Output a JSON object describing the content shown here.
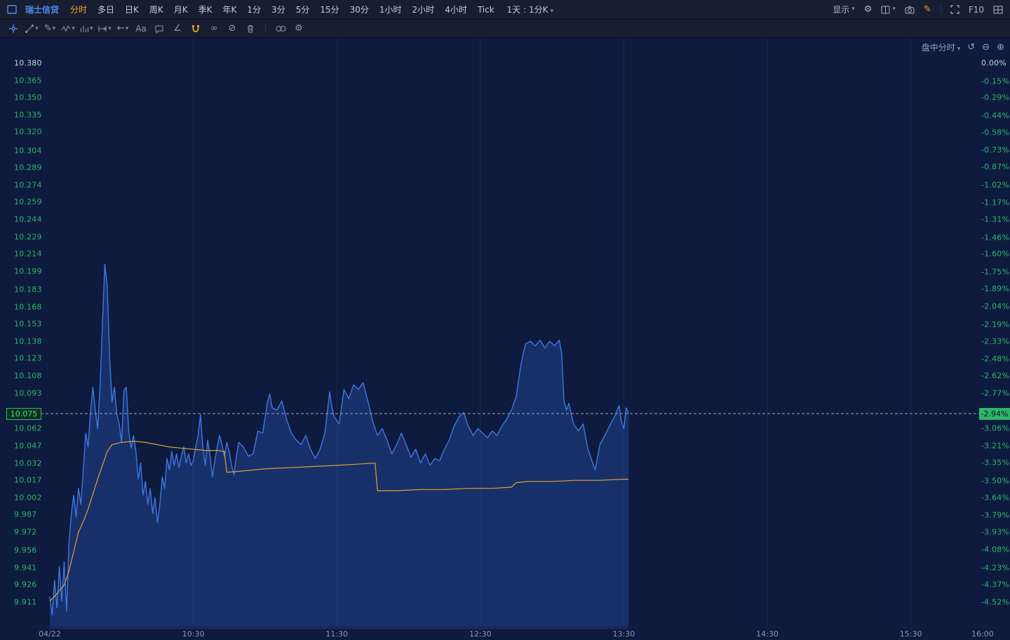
{
  "topbar": {
    "symbol": "瑞士信贷",
    "tabs": [
      "分时",
      "多日",
      "日K",
      "周K",
      "月K",
      "季K",
      "年K",
      "1分",
      "3分",
      "5分",
      "15分",
      "30分",
      "1小时",
      "2小时",
      "4小时",
      "Tick"
    ],
    "active_tab": "分时",
    "period_selector": "1天 : 1分K",
    "display_label": "显示",
    "f10_label": "F10",
    "right_icons": [
      "settings-gear-icon",
      "panel-layout-icon",
      "screenshot-camera-icon",
      "drawing-pencil-icon",
      "fullscreen-icon",
      "multi-window-icon"
    ]
  },
  "drawing_toolbar": {
    "text_tool_label": "Aa",
    "tools": [
      "cursor-crosshair",
      "trendline-tool",
      "pencil-tool",
      "wave-tool",
      "pattern-tool",
      "measure-tool",
      "arrow-tool",
      "text-tool",
      "comment-tool",
      "angle-tool",
      "magnet-tool",
      "continuous-draw-tool",
      "hide-drawings-tool",
      "delete-drawings-tool",
      "sync-drawings-tool",
      "drawing-settings-tool"
    ]
  },
  "chart": {
    "overlay_label": "盘中分时",
    "current_price": "10.075",
    "current_percent": "-2.94%",
    "price_axis": [
      "10.380",
      "10.365",
      "10.350",
      "10.335",
      "10.320",
      "10.304",
      "10.289",
      "10.274",
      "10.259",
      "10.244",
      "10.229",
      "10.214",
      "10.199",
      "10.183",
      "10.168",
      "10.153",
      "10.138",
      "10.123",
      "10.108",
      "10.093",
      "10.062",
      "10.047",
      "10.032",
      "10.017",
      "10.002",
      "9.987",
      "9.972",
      "9.956",
      "9.941",
      "9.926",
      "9.911"
    ],
    "percent_axis": [
      "0.00%",
      "-0.15%",
      "-0.29%",
      "-0.44%",
      "-0.58%",
      "-0.73%",
      "-0.87%",
      "-1.02%",
      "-1.17%",
      "-1.31%",
      "-1.46%",
      "-1.60%",
      "-1.75%",
      "-1.89%",
      "-2.04%",
      "-2.19%",
      "-2.33%",
      "-2.48%",
      "-2.62%",
      "-2.77%",
      "-3.06%",
      "-3.21%",
      "-3.35%",
      "-3.50%",
      "-3.64%",
      "-3.79%",
      "-3.93%",
      "-4.08%",
      "-4.23%",
      "-4.37%",
      "-4.52%"
    ],
    "colors": {
      "down_green": "#2fb56a",
      "accent_orange": "#f5a623",
      "line_blue": "#3e77e0",
      "avg_orange": "#e0a030",
      "background": "#0e1b3e",
      "grid": "#1b2950"
    }
  },
  "chart_data": {
    "type": "line",
    "title": "瑞士信贷 盘中分时 (1分钟)",
    "prev_close": 10.38,
    "current_price": 10.075,
    "current_change_percent": -2.94,
    "x_unit": "minutes since 09:30 open",
    "x_range": [
      0,
      390
    ],
    "y_range": [
      9.911,
      10.38
    ],
    "legend_position": "none",
    "grid": "vertical-hour-lines",
    "time_ticks": [
      {
        "label": "04/22",
        "t": 0
      },
      {
        "label": "10:30",
        "t": 60
      },
      {
        "label": "11:30",
        "t": 120
      },
      {
        "label": "12:30",
        "t": 180
      },
      {
        "label": "13:30",
        "t": 240
      },
      {
        "label": "14:30",
        "t": 300
      },
      {
        "label": "15:30",
        "t": 360
      },
      {
        "label": "16:00",
        "t": 390
      }
    ],
    "series": [
      {
        "name": "price",
        "color": "#3e77e0",
        "fill": "rgba(38,76,158,0.45)",
        "points": [
          [
            0,
            9.916
          ],
          [
            1,
            9.9
          ],
          [
            2,
            9.93
          ],
          [
            3,
            9.906
          ],
          [
            4,
            9.942
          ],
          [
            5,
            9.912
          ],
          [
            6,
            9.946
          ],
          [
            7,
            9.903
          ],
          [
            8,
            9.962
          ],
          [
            9,
            9.988
          ],
          [
            10,
            10.004
          ],
          [
            11,
            9.985
          ],
          [
            12,
            10.01
          ],
          [
            13,
            9.996
          ],
          [
            14,
            10.026
          ],
          [
            15,
            10.058
          ],
          [
            16,
            10.046
          ],
          [
            17,
            10.076
          ],
          [
            18,
            10.098
          ],
          [
            19,
            10.078
          ],
          [
            20,
            10.062
          ],
          [
            21,
            10.098
          ],
          [
            22,
            10.152
          ],
          [
            23,
            10.205
          ],
          [
            24,
            10.186
          ],
          [
            25,
            10.124
          ],
          [
            26,
            10.085
          ],
          [
            27,
            10.098
          ],
          [
            28,
            10.075
          ],
          [
            29,
            10.066
          ],
          [
            30,
            10.05
          ],
          [
            31,
            10.095
          ],
          [
            32,
            10.098
          ],
          [
            33,
            10.06
          ],
          [
            34,
            10.045
          ],
          [
            35,
            10.056
          ],
          [
            36,
            10.042
          ],
          [
            37,
            10.018
          ],
          [
            38,
            10.032
          ],
          [
            39,
            10.004
          ],
          [
            40,
            10.016
          ],
          [
            41,
            9.996
          ],
          [
            42,
            10.01
          ],
          [
            43,
            9.988
          ],
          [
            44,
            10.002
          ],
          [
            45,
            9.98
          ],
          [
            46,
            9.996
          ],
          [
            47,
            10.02
          ],
          [
            48,
            10.01
          ],
          [
            49,
            10.036
          ],
          [
            50,
            10.026
          ],
          [
            51,
            10.042
          ],
          [
            52,
            10.03
          ],
          [
            53,
            10.04
          ],
          [
            54,
            10.028
          ],
          [
            55,
            10.038
          ],
          [
            56,
            10.046
          ],
          [
            57,
            10.032
          ],
          [
            58,
            10.04
          ],
          [
            59,
            10.03
          ],
          [
            60,
            10.034
          ],
          [
            61,
            10.046
          ],
          [
            62,
            10.056
          ],
          [
            63,
            10.074
          ],
          [
            64,
            10.046
          ],
          [
            65,
            10.03
          ],
          [
            66,
            10.052
          ],
          [
            67,
            10.038
          ],
          [
            68,
            10.02
          ],
          [
            69,
            10.034
          ],
          [
            70,
            10.046
          ],
          [
            71,
            10.056
          ],
          [
            72,
            10.048
          ],
          [
            73,
            10.038
          ],
          [
            74,
            10.05
          ],
          [
            75,
            10.042
          ],
          [
            76,
            10.03
          ],
          [
            77,
            10.022
          ],
          [
            78,
            10.038
          ],
          [
            79,
            10.05
          ],
          [
            81,
            10.046
          ],
          [
            83,
            10.038
          ],
          [
            85,
            10.04
          ],
          [
            87,
            10.06
          ],
          [
            89,
            10.058
          ],
          [
            91,
            10.085
          ],
          [
            92,
            10.092
          ],
          [
            93,
            10.08
          ],
          [
            95,
            10.078
          ],
          [
            97,
            10.086
          ],
          [
            99,
            10.07
          ],
          [
            101,
            10.058
          ],
          [
            103,
            10.052
          ],
          [
            105,
            10.048
          ],
          [
            107,
            10.056
          ],
          [
            109,
            10.044
          ],
          [
            111,
            10.036
          ],
          [
            113,
            10.044
          ],
          [
            115,
            10.058
          ],
          [
            117,
            10.094
          ],
          [
            118,
            10.08
          ],
          [
            119,
            10.072
          ],
          [
            121,
            10.066
          ],
          [
            123,
            10.096
          ],
          [
            125,
            10.088
          ],
          [
            127,
            10.1
          ],
          [
            129,
            10.096
          ],
          [
            131,
            10.102
          ],
          [
            133,
            10.086
          ],
          [
            135,
            10.068
          ],
          [
            137,
            10.056
          ],
          [
            139,
            10.062
          ],
          [
            141,
            10.052
          ],
          [
            143,
            10.04
          ],
          [
            145,
            10.048
          ],
          [
            147,
            10.058
          ],
          [
            149,
            10.048
          ],
          [
            151,
            10.037
          ],
          [
            153,
            10.044
          ],
          [
            155,
            10.032
          ],
          [
            157,
            10.04
          ],
          [
            159,
            10.03
          ],
          [
            161,
            10.036
          ],
          [
            163,
            10.034
          ],
          [
            165,
            10.044
          ],
          [
            167,
            10.052
          ],
          [
            169,
            10.064
          ],
          [
            171,
            10.072
          ],
          [
            173,
            10.076
          ],
          [
            175,
            10.064
          ],
          [
            177,
            10.056
          ],
          [
            179,
            10.062
          ],
          [
            181,
            10.058
          ],
          [
            183,
            10.054
          ],
          [
            185,
            10.06
          ],
          [
            187,
            10.056
          ],
          [
            189,
            10.064
          ],
          [
            191,
            10.07
          ],
          [
            193,
            10.078
          ],
          [
            195,
            10.09
          ],
          [
            196,
            10.104
          ],
          [
            197,
            10.118
          ],
          [
            198,
            10.128
          ],
          [
            199,
            10.136
          ],
          [
            201,
            10.138
          ],
          [
            203,
            10.134
          ],
          [
            205,
            10.139
          ],
          [
            207,
            10.132
          ],
          [
            209,
            10.138
          ],
          [
            211,
            10.134
          ],
          [
            213,
            10.139
          ],
          [
            214,
            10.128
          ],
          [
            215,
            10.086
          ],
          [
            216,
            10.078
          ],
          [
            217,
            10.084
          ],
          [
            219,
            10.066
          ],
          [
            221,
            10.06
          ],
          [
            223,
            10.066
          ],
          [
            225,
            10.044
          ],
          [
            227,
            10.032
          ],
          [
            228,
            10.026
          ],
          [
            230,
            10.048
          ],
          [
            232,
            10.056
          ],
          [
            234,
            10.064
          ],
          [
            236,
            10.072
          ],
          [
            238,
            10.082
          ],
          [
            239,
            10.068
          ],
          [
            240,
            10.062
          ],
          [
            241,
            10.08
          ],
          [
            242,
            10.075
          ]
        ]
      },
      {
        "name": "avg_price",
        "color": "#e0a030",
        "points": [
          [
            0,
            9.912
          ],
          [
            2,
            9.916
          ],
          [
            4,
            9.921
          ],
          [
            6,
            9.926
          ],
          [
            8,
            9.938
          ],
          [
            10,
            9.955
          ],
          [
            12,
            9.972
          ],
          [
            14,
            9.981
          ],
          [
            16,
            9.992
          ],
          [
            18,
            10.005
          ],
          [
            20,
            10.018
          ],
          [
            22,
            10.03
          ],
          [
            24,
            10.042
          ],
          [
            26,
            10.048
          ],
          [
            30,
            10.05
          ],
          [
            35,
            10.051
          ],
          [
            40,
            10.05
          ],
          [
            45,
            10.048
          ],
          [
            50,
            10.046
          ],
          [
            55,
            10.045
          ],
          [
            60,
            10.044
          ],
          [
            65,
            10.043
          ],
          [
            70,
            10.043
          ],
          [
            73,
            10.042
          ],
          [
            74,
            10.024
          ],
          [
            80,
            10.025
          ],
          [
            90,
            10.027
          ],
          [
            100,
            10.028
          ],
          [
            110,
            10.029
          ],
          [
            120,
            10.03
          ],
          [
            128,
            10.031
          ],
          [
            136,
            10.032
          ],
          [
            137,
            10.008
          ],
          [
            145,
            10.008
          ],
          [
            155,
            10.009
          ],
          [
            165,
            10.009
          ],
          [
            175,
            10.01
          ],
          [
            185,
            10.01
          ],
          [
            193,
            10.011
          ],
          [
            195,
            10.015
          ],
          [
            200,
            10.016
          ],
          [
            210,
            10.016
          ],
          [
            220,
            10.017
          ],
          [
            230,
            10.017
          ],
          [
            240,
            10.018
          ],
          [
            242,
            10.018
          ]
        ]
      }
    ]
  }
}
